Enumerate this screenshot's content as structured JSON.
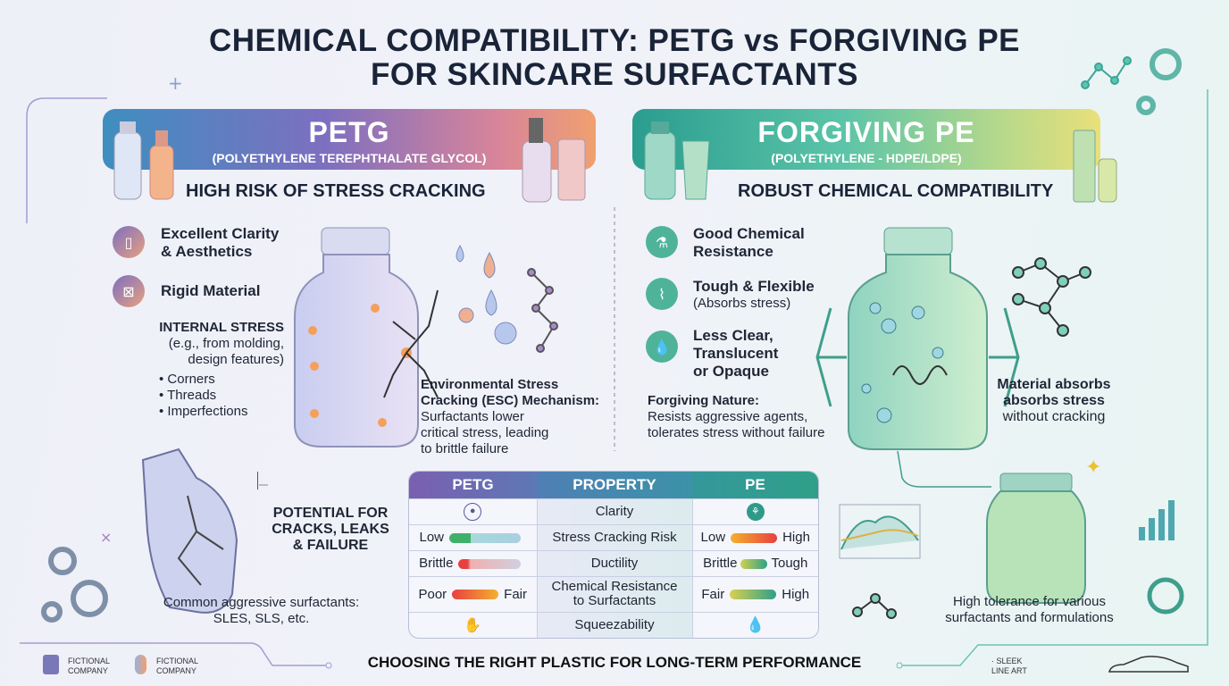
{
  "title": {
    "line1": "CHEMICAL COMPATIBILITY: PETG vs FORGIVING PE",
    "line2": "FOR SKINCARE SURFACTANTS"
  },
  "colors": {
    "petg_accent": "#8a6fc0",
    "pe_accent": "#2a9d8f",
    "title": "#1a2438"
  },
  "petg": {
    "name": "PETG",
    "full_name": "(POLYETHYLENE TEREPHTHALATE GLYCOL)",
    "headline": "HIGH RISK OF STRESS CRACKING",
    "features": [
      {
        "icon": "bottle-icon",
        "label": "Excellent Clarity\n& Aesthetics"
      },
      {
        "icon": "rigid-frame-icon",
        "label": "Rigid Material"
      }
    ],
    "internal_stress": {
      "title": "INTERNAL STRESS",
      "desc1": "(e.g., from molding,",
      "desc2": "design features)",
      "items": [
        "• Corners",
        "• Threads",
        "• Imperfections"
      ]
    },
    "esc": {
      "title1": "Environmental Stress",
      "title2": "Cracking (ESC) Mechanism:",
      "body1": "Surfactants lower",
      "body2": "critical stress, leading",
      "body3": "to brittle failure"
    },
    "failure": {
      "line1": "POTENTIAL FOR",
      "line2": "CRACKS, LEAKS",
      "line3": "& FAILURE"
    },
    "surfactants": {
      "line1": "Common aggressive surfactants:",
      "line2": "SLES, SLS, etc."
    }
  },
  "pe": {
    "name": "FORGIVING PE",
    "full_name": "(POLYETHYLENE - HDPE/LDPE)",
    "headline": "ROBUST CHEMICAL COMPATIBILITY",
    "features": [
      {
        "icon": "flask-icon",
        "label1": "Good Chemical",
        "label2": "Resistance"
      },
      {
        "icon": "spring-icon",
        "label1": "Tough & Flexible",
        "label2": "(Absorbs stress)"
      },
      {
        "icon": "droplet-icon",
        "label1": "Less Clear,",
        "label2": "Translucent",
        "label3": "or Opaque"
      }
    ],
    "forgiving": {
      "title": "Forgiving Nature:",
      "body1": "Resists aggressive agents,",
      "body2": "tolerates stress without failure"
    },
    "absorbs": {
      "line1": "Material absorbs",
      "line2": "absorbs stress",
      "line3": "without cracking"
    },
    "tolerance": {
      "line1": "High tolerance for various",
      "line2": "surfactants and formulations"
    }
  },
  "table": {
    "headers": [
      "PETG",
      "PROPERTY",
      "PE"
    ],
    "rows": [
      {
        "petg": {
          "icon": "droplet-icon"
        },
        "property": "Clarity",
        "pe": {
          "icon": "molecule-icon"
        }
      },
      {
        "petg": {
          "left": "Low",
          "right": ""
        },
        "property": "Stress Cracking Risk",
        "pe": {
          "left": "Low",
          "right": "High"
        }
      },
      {
        "petg": {
          "left": "Brittle",
          "right": ""
        },
        "property": "Ductility",
        "pe": {
          "left": "Brittle",
          "right": "Tough"
        }
      },
      {
        "petg": {
          "left": "Poor",
          "right": "Fair"
        },
        "property": "Chemical Resistance\nto Surfactants",
        "pe": {
          "left": "Fair",
          "right": "High"
        }
      },
      {
        "petg": {
          "icon": "squeeze-hand-icon"
        },
        "property": "Squeezability",
        "pe": {
          "icon": "droplet-icon"
        }
      }
    ]
  },
  "footer": {
    "tagline": "CHOOSING THE RIGHT PLASTIC FOR LONG-TERM PERFORMANCE",
    "logo1": "FICTIONAL\nCOMPANY",
    "logo2": "FICTIONAL\nCOMPANY",
    "logo3": "· SLEEK\nLINE ART"
  }
}
